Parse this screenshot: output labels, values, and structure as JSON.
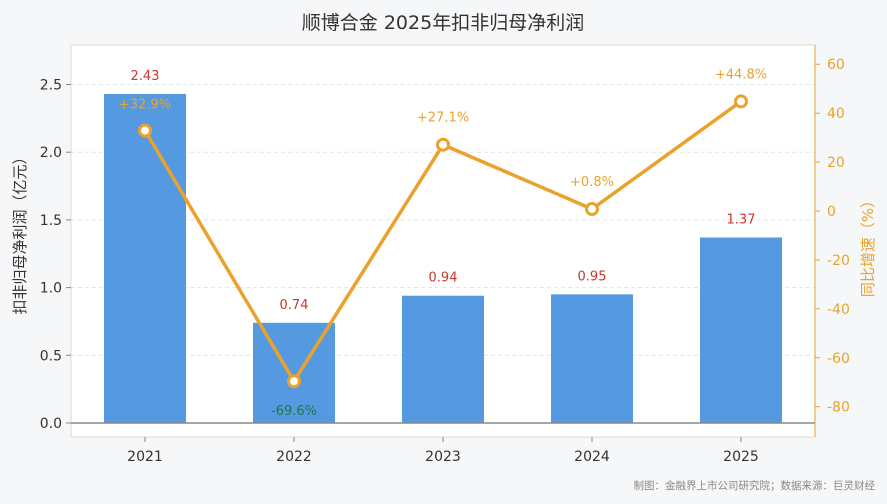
{
  "chart_data": {
    "type": "bar",
    "title": "顺博合金 2025年扣非归母净利润",
    "categories": [
      "2021",
      "2022",
      "2023",
      "2024",
      "2025"
    ],
    "series": [
      {
        "name": "扣非归母净利润",
        "type": "bar",
        "axis": "left",
        "values": [
          2.43,
          0.74,
          0.94,
          0.95,
          1.37
        ],
        "labels": [
          "2.43",
          "0.74",
          "0.94",
          "0.95",
          "1.37"
        ],
        "color": "#5599e0"
      },
      {
        "name": "同比增速",
        "type": "line",
        "axis": "right",
        "values": [
          32.9,
          -69.6,
          27.1,
          0.8,
          44.8
        ],
        "labels": [
          "+32.9%",
          "-69.6%",
          "+27.1%",
          "+0.8%",
          "+44.8%"
        ],
        "color": "#eaa22c"
      }
    ],
    "ylabel": "扣非归母净利润（亿元）",
    "ylim": [
      0,
      2.8
    ],
    "yticks": [
      "0.0",
      "0.5",
      "1.0",
      "1.5",
      "2.0",
      "2.5"
    ],
    "y2label": "同比增速（%）",
    "y2lim": [
      -90,
      66
    ],
    "y2ticks": [
      "-80",
      "-60",
      "-40",
      "-20",
      "0",
      "20",
      "40",
      "60"
    ],
    "grid": true,
    "colors": {
      "bar_label": "#c8382e",
      "negative_label": "#1a7a4a",
      "right_axis": "#eaa22c",
      "text": "#333333",
      "source": "#888888"
    },
    "source": "制图：金融界上市公司研究院；数据来源：巨灵财经"
  }
}
